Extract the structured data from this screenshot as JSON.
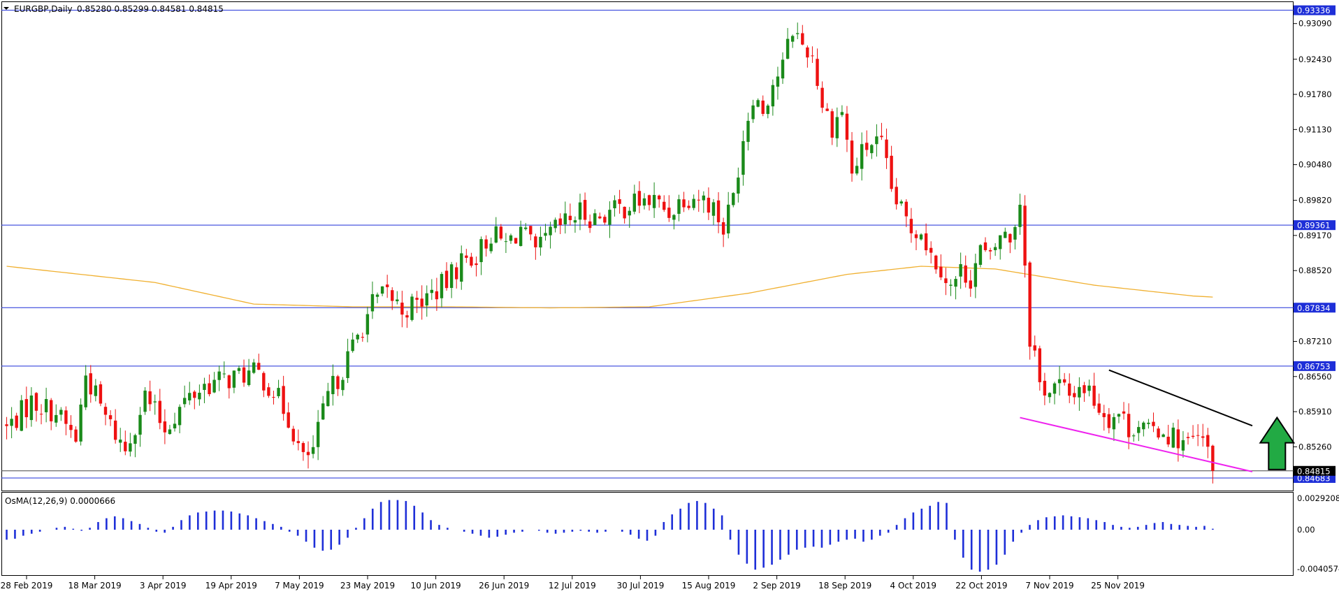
{
  "header": {
    "symbol": "EURGBP,Daily",
    "ohlc": "0.85280 0.85299 0.84581 0.84815"
  },
  "osma": {
    "label": "OsMA(12,26,9) 0.0000666",
    "axis_labels": [
      "0.0029208",
      "0.00",
      "-0.0040574"
    ]
  },
  "price_axis": {
    "labels": [
      "0.93090",
      "0.92430",
      "0.91780",
      "0.91130",
      "0.90480",
      "0.89820",
      "0.89170",
      "0.88520",
      "0.87210",
      "0.86560",
      "0.85910",
      "0.85260"
    ]
  },
  "levels": [
    {
      "value": "0.93336",
      "color": "#1e2fd8"
    },
    {
      "value": "0.89361",
      "color": "#1e2fd8"
    },
    {
      "value": "0.87834",
      "color": "#1e2fd8"
    },
    {
      "value": "0.86753",
      "color": "#1e2fd8"
    },
    {
      "value": "0.84683",
      "color": "#1e2fd8"
    }
  ],
  "current_price": {
    "value": "0.84815",
    "color": "#000000"
  },
  "x_axis": {
    "labels": [
      "28 Feb 2019",
      "18 Mar 2019",
      "3 Apr 2019",
      "19 Apr 2019",
      "7 May 2019",
      "23 May 2019",
      "10 Jun 2019",
      "26 Jun 2019",
      "12 Jul 2019",
      "30 Jul 2019",
      "15 Aug 2019",
      "2 Sep 2019",
      "18 Sep 2019",
      "4 Oct 2019",
      "22 Oct 2019",
      "7 Nov 2019",
      "25 Nov 2019"
    ]
  },
  "colors": {
    "bull": "#1a8a1a",
    "bear": "#ee1111",
    "ma": "#f0b030",
    "level": "#1e2fd8",
    "osma": "#1e2fd8",
    "arrow": "#22aa44",
    "upper_trend": "#000000",
    "lower_trend": "#ee22ee"
  },
  "chart_data": {
    "type": "candlestick",
    "title": "EURGBP,Daily",
    "ylim": [
      0.8445,
      0.935
    ],
    "x_ticks": [
      "28 Feb 2019",
      "18 Mar 2019",
      "3 Apr 2019",
      "19 Apr 2019",
      "7 May 2019",
      "23 May 2019",
      "10 Jun 2019",
      "26 Jun 2019",
      "12 Jul 2019",
      "30 Jul 2019",
      "15 Aug 2019",
      "2 Sep 2019",
      "18 Sep 2019",
      "4 Oct 2019",
      "22 Oct 2019",
      "7 Nov 2019",
      "25 Nov 2019"
    ],
    "close_path": [
      [
        0,
        0.856
      ],
      [
        5,
        0.861
      ],
      [
        10,
        0.859
      ],
      [
        14,
        0.854
      ],
      [
        16,
        0.866
      ],
      [
        20,
        0.858
      ],
      [
        24,
        0.852
      ],
      [
        28,
        0.862
      ],
      [
        32,
        0.856
      ],
      [
        36,
        0.861
      ],
      [
        40,
        0.864
      ],
      [
        44,
        0.865
      ],
      [
        48,
        0.866
      ],
      [
        51,
        0.866
      ],
      [
        54,
        0.863
      ],
      [
        57,
        0.858
      ],
      [
        60,
        0.85
      ],
      [
        62,
        0.852
      ],
      [
        65,
        0.862
      ],
      [
        68,
        0.867
      ],
      [
        71,
        0.873
      ],
      [
        74,
        0.879
      ],
      [
        77,
        0.881
      ],
      [
        80,
        0.878
      ],
      [
        83,
        0.879
      ],
      [
        86,
        0.881
      ],
      [
        89,
        0.883
      ],
      [
        92,
        0.887
      ],
      [
        95,
        0.888
      ],
      [
        98,
        0.892
      ],
      [
        101,
        0.89
      ],
      [
        104,
        0.893
      ],
      [
        107,
        0.888
      ],
      [
        110,
        0.892
      ],
      [
        113,
        0.894
      ],
      [
        116,
        0.896
      ],
      [
        119,
        0.895
      ],
      [
        122,
        0.896
      ],
      [
        125,
        0.897
      ],
      [
        128,
        0.898
      ],
      [
        131,
        0.898
      ],
      [
        134,
        0.896
      ],
      [
        137,
        0.899
      ],
      [
        140,
        0.899
      ],
      [
        143,
        0.897
      ],
      [
        145,
        0.893
      ],
      [
        147,
        0.899
      ],
      [
        149,
        0.91
      ],
      [
        151,
        0.918
      ],
      [
        153,
        0.915
      ],
      [
        155,
        0.92
      ],
      [
        157,
        0.923
      ],
      [
        159,
        0.93
      ],
      [
        161,
        0.927
      ],
      [
        163,
        0.925
      ],
      [
        165,
        0.916
      ],
      [
        167,
        0.912
      ],
      [
        169,
        0.915
      ],
      [
        171,
        0.903
      ],
      [
        173,
        0.907
      ],
      [
        175,
        0.909
      ],
      [
        177,
        0.908
      ],
      [
        179,
        0.9
      ],
      [
        181,
        0.896
      ],
      [
        183,
        0.893
      ],
      [
        185,
        0.893
      ],
      [
        187,
        0.888
      ],
      [
        189,
        0.886
      ],
      [
        191,
        0.882
      ],
      [
        193,
        0.885
      ],
      [
        195,
        0.884
      ],
      [
        197,
        0.889
      ],
      [
        199,
        0.887
      ],
      [
        201,
        0.892
      ],
      [
        203,
        0.891
      ],
      [
        205,
        0.898
      ],
      [
        206,
        0.887
      ],
      [
        207,
        0.873
      ],
      [
        208,
        0.87
      ],
      [
        209,
        0.864
      ],
      [
        211,
        0.863
      ],
      [
        213,
        0.864
      ],
      [
        215,
        0.862
      ],
      [
        217,
        0.864
      ],
      [
        219,
        0.863
      ],
      [
        221,
        0.86
      ],
      [
        223,
        0.858
      ],
      [
        225,
        0.859
      ],
      [
        227,
        0.856
      ],
      [
        229,
        0.857
      ],
      [
        231,
        0.855
      ],
      [
        233,
        0.856
      ],
      [
        235,
        0.855
      ],
      [
        237,
        0.854
      ],
      [
        239,
        0.853
      ],
      [
        241,
        0.854
      ],
      [
        243,
        0.852
      ],
      [
        244,
        0.8482
      ]
    ],
    "moving_average": [
      [
        0,
        0.886
      ],
      [
        30,
        0.883
      ],
      [
        50,
        0.879
      ],
      [
        70,
        0.8785
      ],
      [
        90,
        0.8785
      ],
      [
        110,
        0.8783
      ],
      [
        130,
        0.8785
      ],
      [
        150,
        0.881
      ],
      [
        170,
        0.8845
      ],
      [
        185,
        0.886
      ],
      [
        200,
        0.8855
      ],
      [
        220,
        0.8825
      ],
      [
        240,
        0.8805
      ],
      [
        244,
        0.8803
      ]
    ],
    "horizontal_levels": [
      0.93336,
      0.89361,
      0.87834,
      0.86753,
      0.84683
    ],
    "current_price": 0.84815,
    "upper_trendline": [
      [
        223,
        0.8668
      ],
      [
        252,
        0.8565
      ]
    ],
    "lower_trendline": [
      [
        205,
        0.858
      ],
      [
        252,
        0.848
      ]
    ],
    "osma_hist": [
      -0.001,
      -0.0009,
      -0.0006,
      -0.0004,
      -0.0002,
      0.0,
      0.0002,
      0.0003,
      0.0001,
      -0.0001,
      0.0002,
      0.0008,
      0.0012,
      0.0014,
      0.0012,
      0.0009,
      0.0006,
      0.0002,
      -0.0002,
      -0.0003,
      0.0003,
      0.001,
      0.0015,
      0.0018,
      0.0019,
      0.002,
      0.002,
      0.0019,
      0.0017,
      0.0015,
      0.0012,
      0.0009,
      0.0006,
      0.0003,
      -0.0002,
      -0.0006,
      -0.0012,
      -0.0018,
      -0.0021,
      -0.002,
      -0.0015,
      -0.0008,
      0.0002,
      0.0012,
      0.0022,
      0.0029,
      0.0031,
      0.0031,
      0.003,
      0.0025,
      0.0018,
      0.001,
      0.0005,
      0.0002,
      0.0,
      -0.0002,
      -0.0004,
      -0.0006,
      -0.0008,
      -0.0007,
      -0.0005,
      -0.0003,
      -0.0002,
      0.0,
      -0.0001,
      -0.0003,
      -0.0004,
      -0.0003,
      -0.0002,
      -0.0001,
      -0.0002,
      -0.0003,
      -0.0002,
      0.0,
      -0.0002,
      -0.0005,
      -0.0009,
      -0.0011,
      -0.0006,
      0.0008,
      0.0016,
      0.0022,
      0.0028,
      0.003,
      0.0028,
      0.0022,
      0.0015,
      -0.001,
      -0.0025,
      -0.0034,
      -0.004,
      -0.0038,
      -0.0035,
      -0.003,
      -0.0025,
      -0.002,
      -0.0018,
      -0.0017,
      -0.0018,
      -0.0015,
      -0.0012,
      -0.001,
      -0.0009,
      -0.0012,
      -0.001,
      -0.0006,
      -0.0003,
      0.0005,
      0.0012,
      0.0018,
      0.0022,
      0.0025,
      0.0029,
      0.0028,
      -0.001,
      -0.0028,
      -0.004,
      -0.0042,
      -0.004,
      -0.0035,
      -0.0025,
      -0.0012,
      -0.0003,
      0.0005,
      0.001,
      0.0013,
      0.0014,
      0.0015,
      0.0014,
      0.0013,
      0.0012,
      0.001,
      0.0008,
      0.0005,
      0.0003,
      0.0002,
      0.0003,
      0.0005,
      0.0007,
      0.0008,
      0.0006,
      0.0005,
      0.0004,
      0.0003,
      0.0004,
      0.0001
    ]
  }
}
